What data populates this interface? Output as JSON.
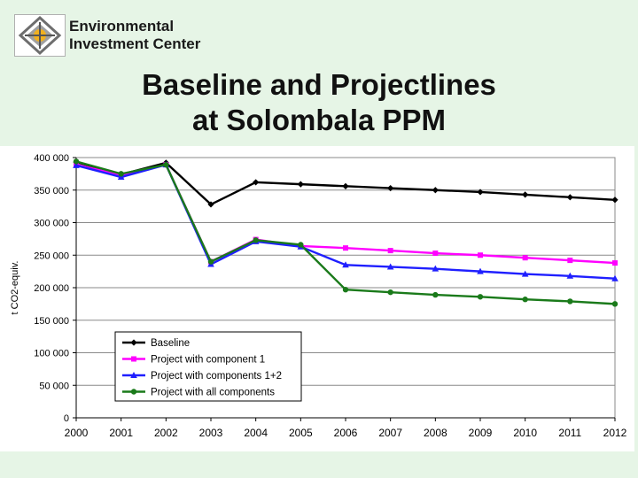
{
  "logo": {
    "line1": "Environmental",
    "line2": "Investment Center",
    "icon": "eic-logo-icon"
  },
  "slide": {
    "title_line1": "Baseline and Projectlines",
    "title_line2": "at Solombala PPM"
  },
  "colors": {
    "background": "#e6f5e6",
    "chart_area": "#ffffff",
    "baseline": "#000000",
    "component1": "#ff00ff",
    "component12": "#1f1fff",
    "all_components": "#1a7a1a"
  },
  "chart_data": {
    "type": "line",
    "title": "",
    "xlabel": "",
    "ylabel": "t CO2-equiv.",
    "ylim": [
      0,
      400000
    ],
    "y_ticks": [
      "0",
      "50 000",
      "100 000",
      "150 000",
      "200 000",
      "250 000",
      "300 000",
      "350 000",
      "400 000"
    ],
    "y_tick_values": [
      0,
      50000,
      100000,
      150000,
      200000,
      250000,
      300000,
      350000,
      400000
    ],
    "x": [
      "2000",
      "2001",
      "2002",
      "2003",
      "2004",
      "2005",
      "2006",
      "2007",
      "2008",
      "2009",
      "2010",
      "2011",
      "2012"
    ],
    "grid": "horizontal",
    "legend": "center-left",
    "series": [
      {
        "name": "Baseline",
        "color": "#000000",
        "marker": "diamond",
        "values": [
          393000,
          374000,
          392000,
          328000,
          362000,
          359000,
          356000,
          353000,
          350000,
          347000,
          343000,
          339000,
          335000
        ]
      },
      {
        "name": "Project with component 1",
        "color": "#ff00ff",
        "marker": "square",
        "values": [
          389000,
          373000,
          389000,
          240000,
          274000,
          264000,
          261000,
          257000,
          253000,
          250000,
          246000,
          242000,
          238000
        ]
      },
      {
        "name": "Project with components 1+2",
        "color": "#1f1fff",
        "marker": "triangle",
        "values": [
          388000,
          370000,
          389000,
          236000,
          271000,
          263000,
          235000,
          232000,
          229000,
          225000,
          221000,
          218000,
          214000
        ]
      },
      {
        "name": "Project with all components",
        "color": "#1a7a1a",
        "marker": "circle",
        "values": [
          394000,
          375000,
          389000,
          240000,
          273000,
          266000,
          197000,
          193000,
          189000,
          186000,
          182000,
          179000,
          175000
        ]
      }
    ]
  }
}
